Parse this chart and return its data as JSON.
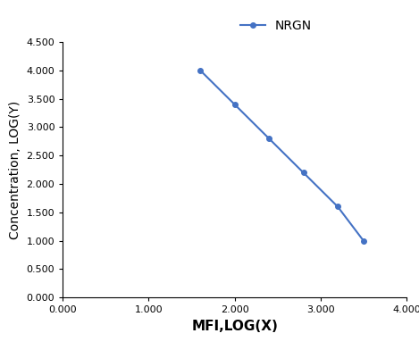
{
  "x": [
    1.6,
    2.0,
    2.4,
    2.8,
    3.2,
    3.5
  ],
  "y": [
    4.0,
    3.4,
    2.8,
    2.2,
    1.6,
    1.0
  ],
  "line_color": "#4472C4",
  "marker": "o",
  "marker_size": 4,
  "line_width": 1.5,
  "legend_label": "NRGN",
  "xlabel": "MFI,LOG(X)",
  "ylabel": "Concentration, LOG(Y)",
  "xlim": [
    0.0,
    4.0
  ],
  "ylim": [
    0.0,
    4.5
  ],
  "xticks": [
    0.0,
    1.0,
    2.0,
    3.0,
    4.0
  ],
  "yticks": [
    0.0,
    0.5,
    1.0,
    1.5,
    2.0,
    2.5,
    3.0,
    3.5,
    4.0,
    4.5
  ],
  "xlabel_fontsize": 11,
  "ylabel_fontsize": 10,
  "legend_fontsize": 10,
  "tick_fontsize": 8,
  "background_color": "#ffffff"
}
